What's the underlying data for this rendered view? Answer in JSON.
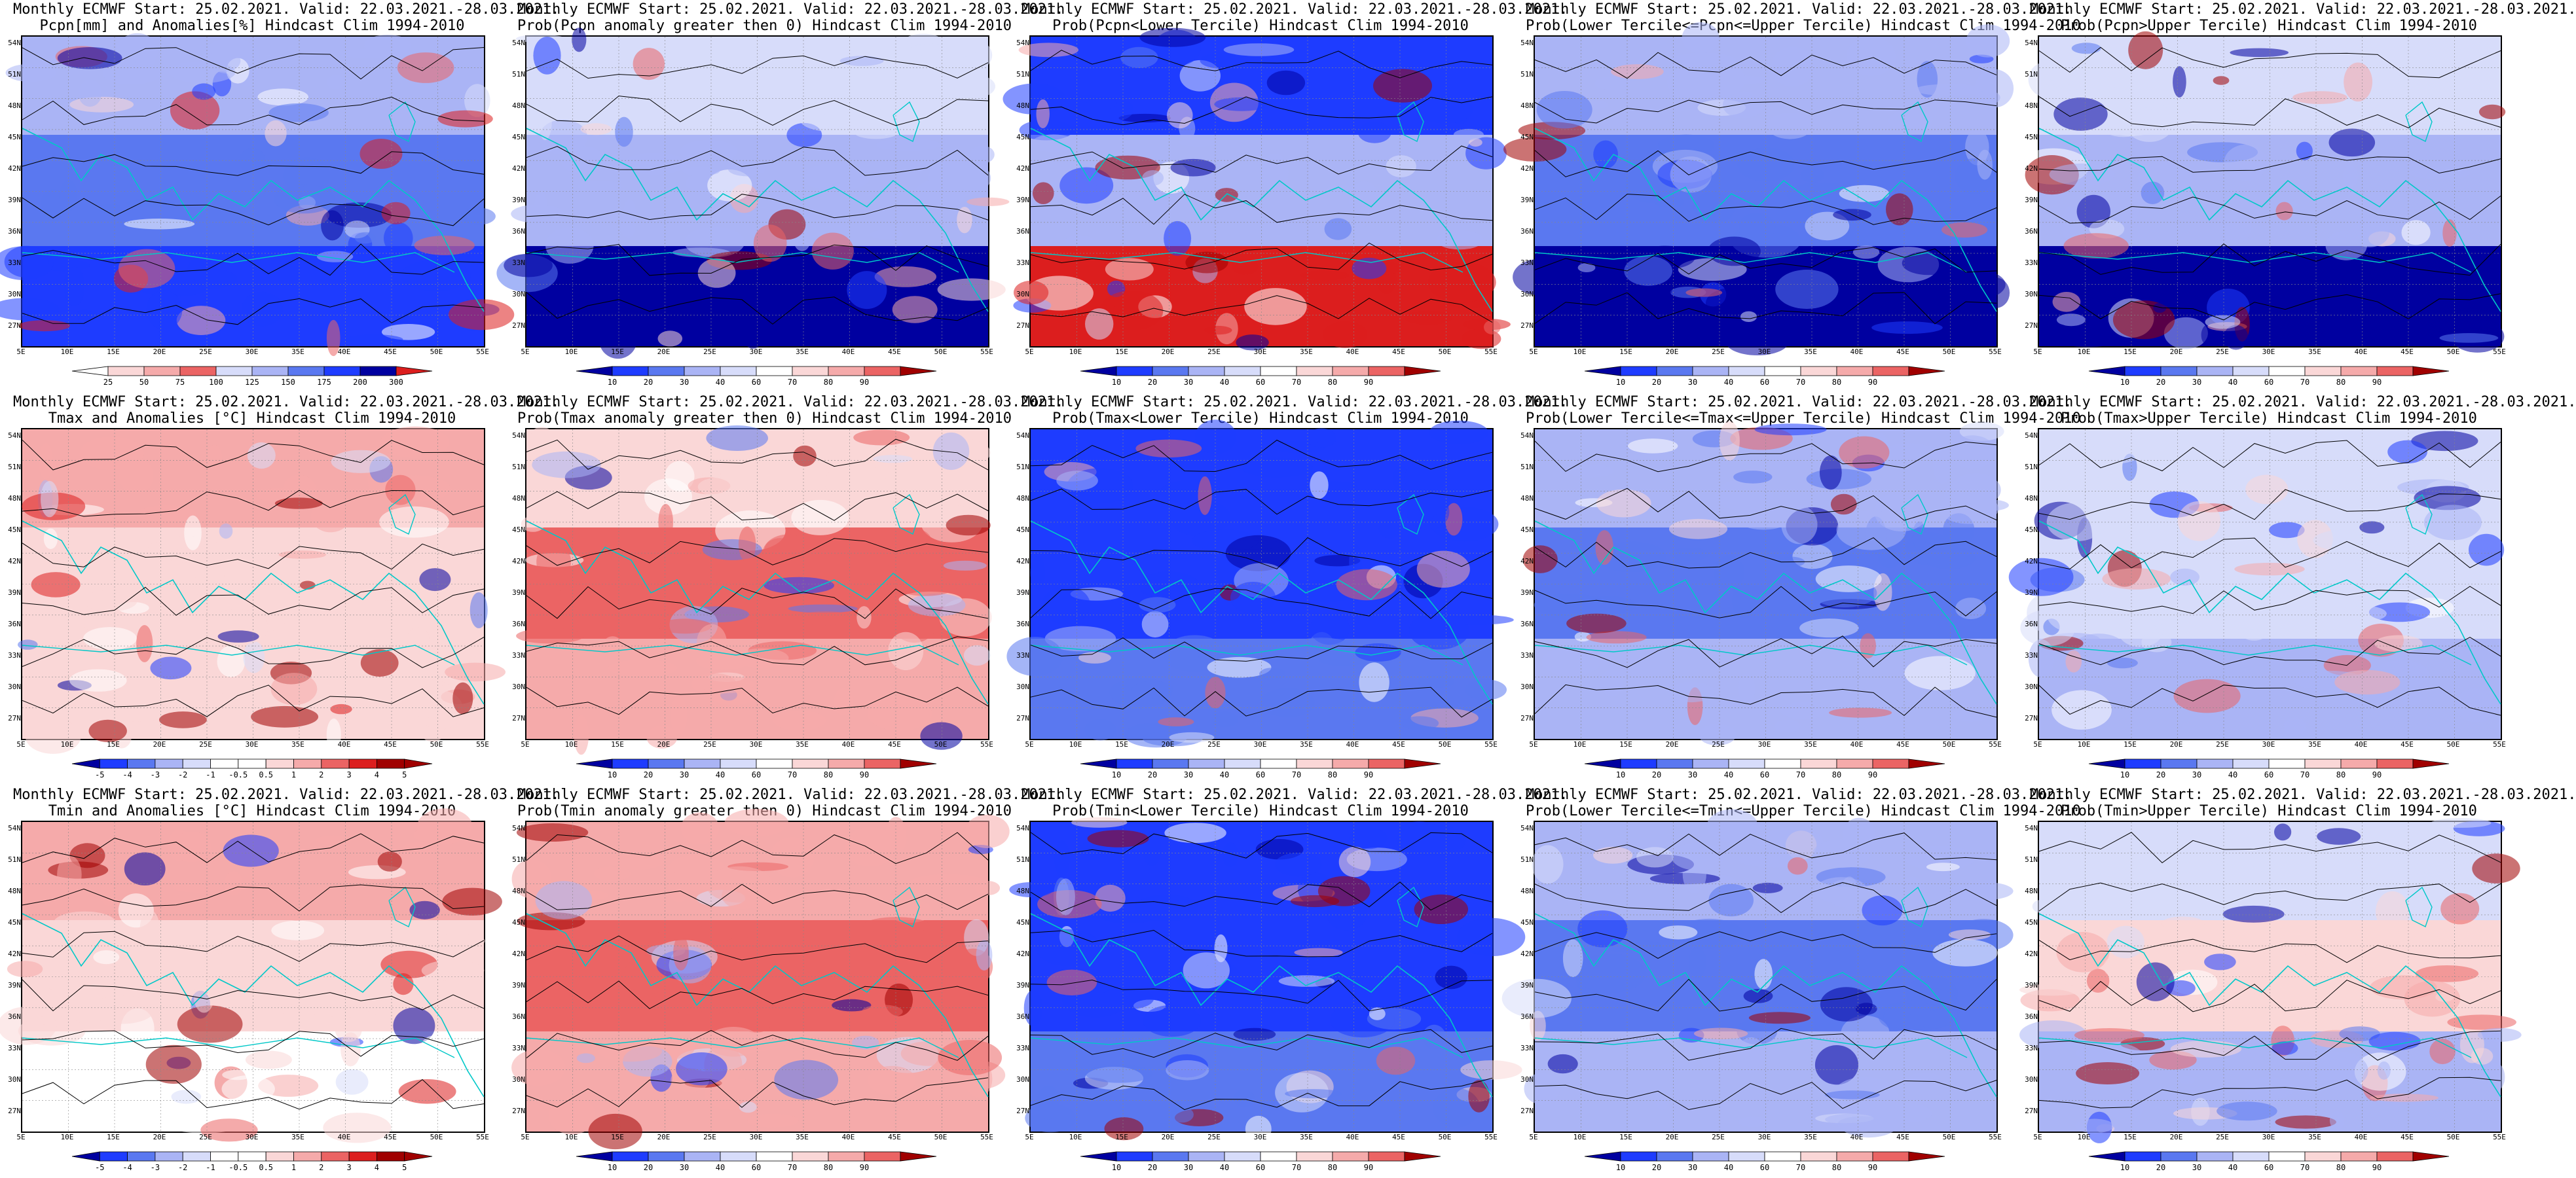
{
  "lat_labels": [
    "54N",
    "51N",
    "48N",
    "45N",
    "42N",
    "39N",
    "36N",
    "33N",
    "30N",
    "27N"
  ],
  "lon_labels": [
    "5E",
    "10E",
    "15E",
    "20E",
    "25E",
    "30E",
    "35E",
    "40E",
    "45E",
    "50E",
    "55E"
  ],
  "prob_scale": [
    "10",
    "20",
    "30",
    "40",
    "60",
    "70",
    "80",
    "90"
  ],
  "pcpn_scale": [
    "25",
    "50",
    "75",
    "100",
    "125",
    "150",
    "175",
    "200",
    "300"
  ],
  "temp_scale": [
    "-5",
    "-4",
    "-3",
    "-2",
    "-1",
    "-0.5",
    "0.5",
    "1",
    "2",
    "3",
    "4",
    "5"
  ],
  "colors": {
    "deep_blue": "#0000a0",
    "blue": "#1e3cff",
    "mid_blue": "#5a78f0",
    "light_blue": "#aab4f5",
    "pale_blue": "#d7dcfa",
    "white": "#ffffff",
    "pale_red": "#fad7d7",
    "light_red": "#f5aaaa",
    "mid_red": "#eb6464",
    "red": "#dc1e1e",
    "dark_red": "#a00000",
    "contour": "#000000",
    "coast": "#00c8c8"
  },
  "panels": [
    {
      "title1": "Monthly ECMWF Start: 25.02.2021. Valid: 22.03.2021.-28.03.2021.",
      "title2": "Pcpn[mm] and Anomalies[%] Hindcast Clim 1994-2010",
      "scale": "pcpn"
    },
    {
      "title1": "Monthly ECMWF Start: 25.02.2021. Valid: 22.03.2021.-28.03.2021.",
      "title2": "Prob(Pcpn anomaly greater then 0) Hindcast Clim 1994-2010",
      "scale": "prob"
    },
    {
      "title1": "Monthly ECMWF Start: 25.02.2021. Valid: 22.03.2021.-28.03.2021.",
      "title2": "Prob(Pcpn<Lower Tercile) Hindcast Clim 1994-2010",
      "scale": "prob"
    },
    {
      "title1": "Monthly ECMWF Start: 25.02.2021. Valid: 22.03.2021.-28.03.2021.",
      "title2": "Prob(Lower Tercile<=Pcpn<=Upper Tercile) Hindcast Clim 1994-2010",
      "scale": "prob"
    },
    {
      "title1": "Monthly ECMWF Start: 25.02.2021. Valid: 22.03.2021.-28.03.2021.",
      "title2": "Prob(Pcpn>Upper Tercile) Hindcast Clim 1994-2010",
      "scale": "prob"
    },
    {
      "title1": "Monthly ECMWF Start: 25.02.2021. Valid: 22.03.2021.-28.03.2021.",
      "title2": "Tmax and Anomalies [°C] Hindcast Clim 1994-2010",
      "scale": "temp"
    },
    {
      "title1": "Monthly ECMWF Start: 25.02.2021. Valid: 22.03.2021.-28.03.2021.",
      "title2": "Prob(Tmax anomaly greater then 0) Hindcast Clim 1994-2010",
      "scale": "prob"
    },
    {
      "title1": "Monthly ECMWF Start: 25.02.2021. Valid: 22.03.2021.-28.03.2021.",
      "title2": "Prob(Tmax<Lower Tercile) Hindcast Clim 1994-2010",
      "scale": "prob"
    },
    {
      "title1": "Monthly ECMWF Start: 25.02.2021. Valid: 22.03.2021.-28.03.2021.",
      "title2": "Prob(Lower Tercile<=Tmax<=Upper Tercile) Hindcast Clim 1994-2010",
      "scale": "prob"
    },
    {
      "title1": "Monthly ECMWF Start: 25.02.2021. Valid: 22.03.2021.-28.03.2021.",
      "title2": "Prob(Tmax>Upper Tercile) Hindcast Clim 1994-2010",
      "scale": "prob"
    },
    {
      "title1": "Monthly ECMWF Start: 25.02.2021. Valid: 22.03.2021.-28.03.2021.",
      "title2": "Tmin and Anomalies [°C] Hindcast Clim 1994-2010",
      "scale": "temp"
    },
    {
      "title1": "Monthly ECMWF Start: 25.02.2021. Valid: 22.03.2021.-28.03.2021.",
      "title2": "Prob(Tmin anomaly greater then 0) Hindcast Clim 1994-2010",
      "scale": "prob"
    },
    {
      "title1": "Monthly ECMWF Start: 25.02.2021. Valid: 22.03.2021.-28.03.2021.",
      "title2": "Prob(Tmin<Lower Tercile) Hindcast Clim 1994-2010",
      "scale": "prob"
    },
    {
      "title1": "Monthly ECMWF Start: 25.02.2021. Valid: 22.03.2021.-28.03.2021.",
      "title2": "Prob(Lower Tercile<=Tmin<=Upper Tercile) Hindcast Clim 1994-2010",
      "scale": "prob"
    },
    {
      "title1": "Monthly ECMWF Start: 25.02.2021. Valid: 22.03.2021.-28.03.2021.",
      "title2": "Prob(Tmin>Upper Tercile) Hindcast Clim 1994-2010",
      "scale": "prob"
    }
  ]
}
